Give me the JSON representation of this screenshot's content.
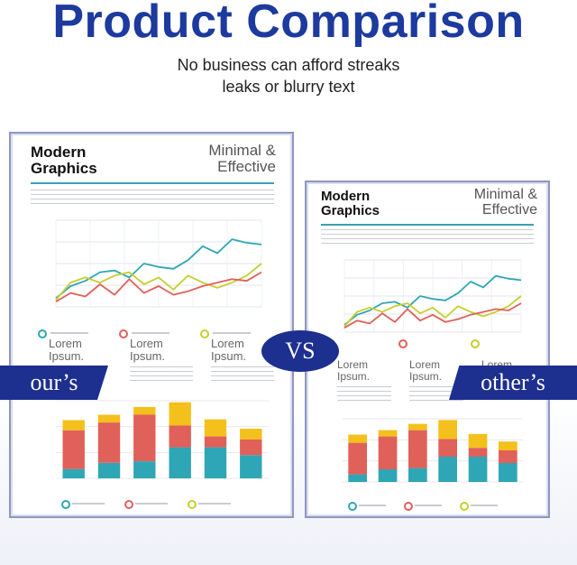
{
  "header": {
    "title": "Product Comparison",
    "subtitle_line1": "No business can afford streaks",
    "subtitle_line2": "leaks or blurry text"
  },
  "badges": {
    "vs": "VS",
    "ours": "our’s",
    "others": "other’s"
  },
  "panel": {
    "title_line1": "Modern",
    "title_line2": "Graphics",
    "tag_line1": "Minimal &",
    "tag_line2": "Effective",
    "legend": [
      {
        "l1": "Lorem",
        "l2": "Ipsum.",
        "color": "#2fa6b5"
      },
      {
        "l1": "Lorem",
        "l2": "Ipsum.",
        "color": "#e0605a"
      },
      {
        "l1": "Lorem",
        "l2": "Ipsum.",
        "color": "#c7cf2e"
      }
    ]
  },
  "colors": {
    "brand": "#1d3a9e",
    "teal": "#2fa6b5",
    "red": "#e0605a",
    "yellow": "#f3c01c",
    "lime": "#c7cf2e"
  },
  "chart_data": [
    {
      "type": "line",
      "title": "",
      "x": [
        1,
        2,
        3,
        4,
        5,
        6,
        7,
        8,
        9,
        10,
        11,
        12,
        13,
        14,
        15
      ],
      "ylim": [
        0,
        100
      ],
      "series": [
        {
          "name": "teal",
          "color": "#2fa6b5",
          "values": [
            10,
            24,
            30,
            40,
            42,
            34,
            50,
            46,
            44,
            54,
            70,
            62,
            78,
            74,
            72
          ]
        },
        {
          "name": "lime",
          "color": "#c7cf2e",
          "values": [
            8,
            28,
            34,
            28,
            36,
            40,
            26,
            34,
            20,
            36,
            28,
            22,
            28,
            36,
            50
          ]
        },
        {
          "name": "red",
          "color": "#e0605a",
          "values": [
            6,
            16,
            12,
            26,
            14,
            32,
            16,
            24,
            14,
            18,
            24,
            28,
            32,
            30,
            40
          ]
        }
      ]
    },
    {
      "type": "bar",
      "stacked": true,
      "categories": [
        "1",
        "2",
        "3",
        "4",
        "5",
        "6"
      ],
      "ylim": [
        0,
        100
      ],
      "series": [
        {
          "name": "teal",
          "color": "#2fa6b5",
          "values": [
            12,
            20,
            22,
            40,
            40,
            30
          ]
        },
        {
          "name": "red",
          "color": "#e0605a",
          "values": [
            50,
            52,
            60,
            28,
            14,
            20
          ]
        },
        {
          "name": "yellow",
          "color": "#f3c01c",
          "values": [
            13,
            10,
            10,
            30,
            22,
            14
          ]
        }
      ]
    }
  ]
}
